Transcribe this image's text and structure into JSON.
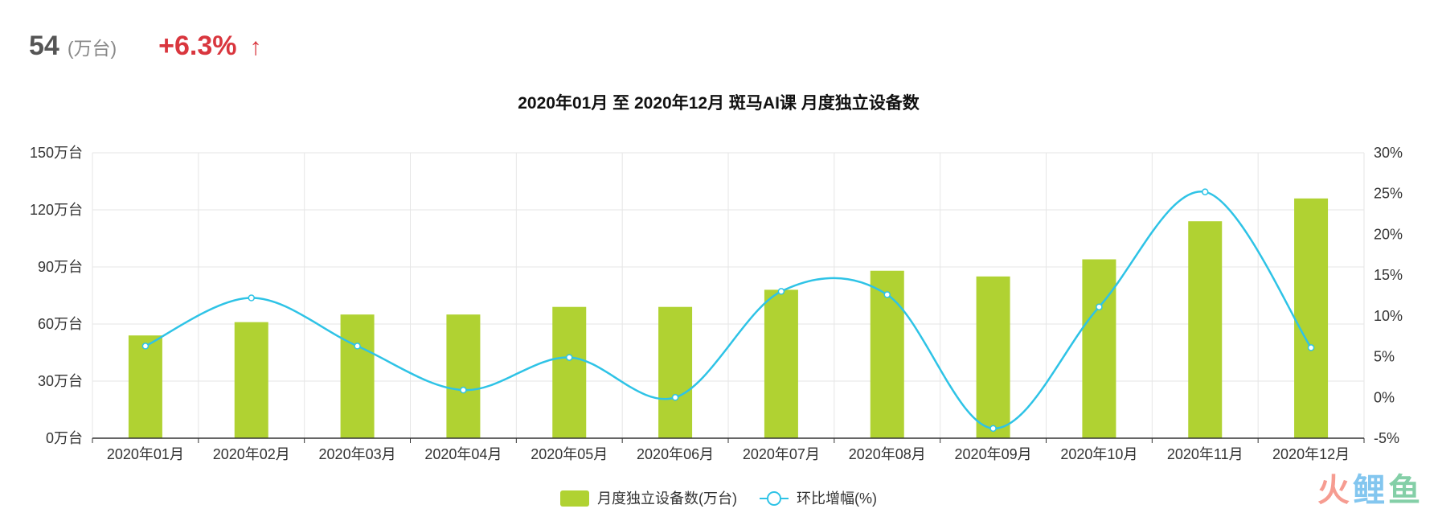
{
  "summary": {
    "value": "54",
    "unit": "(万台)",
    "change": "+6.3%",
    "arrow": "↑",
    "change_color": "#d9363e",
    "arrow_icon": "arrow-up-icon"
  },
  "chart_data": {
    "type": "bar",
    "title": "2020年01月 至 2020年12月 斑马AI课 月度独立设备数",
    "categories": [
      "2020年01月",
      "2020年02月",
      "2020年03月",
      "2020年04月",
      "2020年05月",
      "2020年06月",
      "2020年07月",
      "2020年08月",
      "2020年09月",
      "2020年10月",
      "2020年11月",
      "2020年12月"
    ],
    "left_axis": {
      "range": [
        0,
        150
      ],
      "ticks": [
        0,
        30,
        60,
        90,
        120,
        150
      ],
      "tick_labels": [
        "0万台",
        "30万台",
        "60万台",
        "90万台",
        "120万台",
        "150万台"
      ]
    },
    "right_axis": {
      "range": [
        -5,
        30
      ],
      "ticks": [
        -5,
        0,
        5,
        10,
        15,
        20,
        25,
        30
      ],
      "tick_labels": [
        "-5%",
        "0%",
        "5%",
        "10%",
        "15%",
        "20%",
        "25%",
        "30%"
      ]
    },
    "series": [
      {
        "name": "月度独立设备数(万台)",
        "type": "bar",
        "axis": "left",
        "color": "#b0d232",
        "values": [
          54,
          61,
          65,
          65,
          69,
          69,
          78,
          88,
          85,
          94,
          114,
          126
        ]
      },
      {
        "name": "环比增幅(%)",
        "type": "line",
        "axis": "right",
        "smooth": true,
        "color": "#2ec3e6",
        "values": [
          6.3,
          12.2,
          6.3,
          0.9,
          4.9,
          0.0,
          13.0,
          12.6,
          -3.8,
          11.1,
          25.2,
          6.1
        ]
      }
    ],
    "grid": true,
    "legend_position": "bottom-center"
  },
  "watermark": {
    "text": "火鲤鱼",
    "colors": [
      "#f47c6d",
      "#5ab4ea",
      "#5cc08a"
    ]
  }
}
